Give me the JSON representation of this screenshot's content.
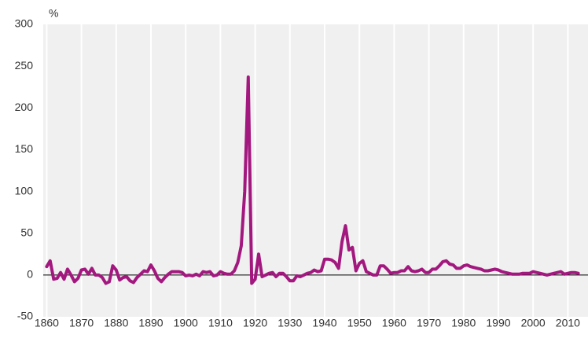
{
  "chart_data": {
    "type": "line",
    "y_label": "%",
    "x": [
      1860,
      1861,
      1862,
      1863,
      1864,
      1865,
      1866,
      1867,
      1868,
      1869,
      1870,
      1871,
      1872,
      1873,
      1874,
      1875,
      1876,
      1877,
      1878,
      1879,
      1880,
      1881,
      1882,
      1883,
      1884,
      1885,
      1886,
      1887,
      1888,
      1889,
      1890,
      1891,
      1892,
      1893,
      1894,
      1895,
      1896,
      1897,
      1898,
      1899,
      1900,
      1901,
      1902,
      1903,
      1904,
      1905,
      1906,
      1907,
      1908,
      1909,
      1910,
      1911,
      1912,
      1913,
      1914,
      1915,
      1916,
      1917,
      1918,
      1919,
      1920,
      1921,
      1922,
      1923,
      1924,
      1925,
      1926,
      1927,
      1928,
      1929,
      1930,
      1931,
      1932,
      1933,
      1934,
      1935,
      1936,
      1937,
      1938,
      1939,
      1940,
      1941,
      1942,
      1943,
      1944,
      1945,
      1946,
      1947,
      1948,
      1949,
      1950,
      1951,
      1952,
      1953,
      1954,
      1955,
      1956,
      1957,
      1958,
      1959,
      1960,
      1961,
      1962,
      1963,
      1964,
      1965,
      1966,
      1967,
      1968,
      1969,
      1970,
      1971,
      1972,
      1973,
      1974,
      1975,
      1976,
      1977,
      1978,
      1979,
      1980,
      1981,
      1982,
      1983,
      1984,
      1985,
      1986,
      1987,
      1988,
      1989,
      1990,
      1991,
      1992,
      1993,
      1994,
      1995,
      1996,
      1997,
      1998,
      1999,
      2000,
      2001,
      2002,
      2003,
      2004,
      2005,
      2006,
      2007,
      2008,
      2009,
      2010,
      2011,
      2012,
      2013
    ],
    "series": [
      {
        "color": "#a3187f",
        "values": [
          10,
          17,
          -5,
          -4,
          3,
          -5,
          7,
          0,
          -8,
          -4,
          6,
          7,
          1,
          8,
          0,
          0,
          -3,
          -10,
          -8,
          11,
          6,
          -6,
          -3,
          -2,
          -7,
          -9,
          -3,
          1,
          5,
          4,
          12,
          5,
          -4,
          -8,
          -3,
          1,
          4,
          4,
          4,
          3,
          -1,
          0,
          -1,
          1,
          -1,
          4,
          3,
          4,
          -1,
          0,
          4,
          2,
          1,
          1,
          5,
          15,
          35,
          100,
          237,
          -10,
          -5,
          25,
          -2,
          0,
          2,
          3,
          -2,
          2,
          2,
          -2,
          -7,
          -7,
          -1,
          -2,
          0,
          2,
          3,
          6,
          4,
          5,
          19,
          19,
          18,
          15,
          8,
          40,
          59,
          30,
          33,
          5,
          14,
          17,
          4,
          2,
          0,
          0,
          11,
          11,
          7,
          2,
          3,
          3,
          5,
          5,
          10,
          5,
          4,
          5,
          7,
          3,
          3,
          7,
          7,
          11,
          16,
          17,
          13,
          12,
          8,
          8,
          11,
          12,
          10,
          9,
          8,
          7,
          5,
          5,
          6,
          7,
          6,
          4,
          3,
          2,
          1,
          1,
          1,
          2,
          2,
          2,
          4,
          3,
          2,
          1,
          0,
          1,
          2,
          3,
          4,
          1,
          2,
          3,
          3,
          2
        ]
      }
    ],
    "xlim": [
      1859,
      2015.8
    ],
    "xticks": [
      1860,
      1870,
      1880,
      1890,
      1900,
      1910,
      1920,
      1930,
      1940,
      1950,
      1960,
      1970,
      1980,
      1990,
      2000,
      2010
    ],
    "ylim": [
      -50,
      300
    ],
    "yticks": [
      -50,
      0,
      50,
      100,
      150,
      200,
      250,
      300
    ],
    "grid": true,
    "background": "#f0f0f0"
  }
}
